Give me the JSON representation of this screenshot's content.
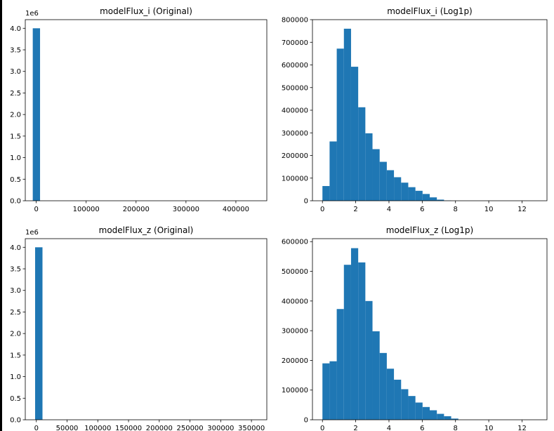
{
  "colors": {
    "bar": "#1f77b4",
    "axis": "#000000",
    "background": "#ffffff"
  },
  "chart_data": [
    {
      "type": "bar",
      "title": "modelFlux_i (Original)",
      "xlabel": "",
      "ylabel": "",
      "offset_label": "1e6",
      "xlim": [
        -22000,
        462000
      ],
      "ylim": [
        0,
        4.2
      ],
      "xticks": [
        0,
        100000,
        200000,
        300000,
        400000
      ],
      "xtick_labels": [
        "0",
        "100000",
        "200000",
        "300000",
        "400000"
      ],
      "yticks": [
        0,
        0.5,
        1.0,
        1.5,
        2.0,
        2.5,
        3.0,
        3.5,
        4.0
      ],
      "ytick_labels": [
        "0.0",
        "0.5",
        "1.0",
        "1.5",
        "2.0",
        "2.5",
        "3.0",
        "3.5",
        "4.0"
      ],
      "bin_width": 14600,
      "bins": [
        {
          "x0": -7000,
          "value": 4.0
        }
      ]
    },
    {
      "type": "bar",
      "title": "modelFlux_i (Log1p)",
      "xlabel": "",
      "ylabel": "",
      "xlim": [
        -0.6,
        13.5
      ],
      "ylim": [
        0,
        800000
      ],
      "xticks": [
        0,
        2,
        4,
        6,
        8,
        10,
        12
      ],
      "xtick_labels": [
        "0",
        "2",
        "4",
        "6",
        "8",
        "10",
        "12"
      ],
      "yticks": [
        0,
        100000,
        200000,
        300000,
        400000,
        500000,
        600000,
        700000,
        800000
      ],
      "ytick_labels": [
        "0",
        "100000",
        "200000",
        "300000",
        "400000",
        "500000",
        "600000",
        "700000",
        "800000"
      ],
      "bin_width": 0.43,
      "values": [
        65000,
        262000,
        672000,
        760000,
        592000,
        413000,
        298000,
        228000,
        172000,
        135000,
        104000,
        80000,
        60000,
        44000,
        30000,
        15000,
        5000,
        1000,
        0,
        0,
        0,
        0,
        0,
        0,
        0,
        0,
        0,
        0,
        0,
        0
      ]
    },
    {
      "type": "bar",
      "title": "modelFlux_z (Original)",
      "xlabel": "",
      "ylabel": "",
      "offset_label": "1e6",
      "xlim": [
        -18000,
        375000
      ],
      "ylim": [
        0,
        4.2
      ],
      "xticks": [
        0,
        50000,
        100000,
        150000,
        200000,
        250000,
        300000,
        350000
      ],
      "xtick_labels": [
        "0",
        "50000",
        "100000",
        "150000",
        "200000",
        "250000",
        "300000",
        "350000"
      ],
      "yticks": [
        0,
        0.5,
        1.0,
        1.5,
        2.0,
        2.5,
        3.0,
        3.5,
        4.0
      ],
      "ytick_labels": [
        "0.0",
        "0.5",
        "1.0",
        "1.5",
        "2.0",
        "2.5",
        "3.0",
        "3.5",
        "4.0"
      ],
      "bin_width": 12000,
      "bins": [
        {
          "x0": -2000,
          "value": 4.0
        }
      ]
    },
    {
      "type": "bar",
      "title": "modelFlux_z (Log1p)",
      "xlabel": "",
      "ylabel": "",
      "xlim": [
        -0.6,
        13.5
      ],
      "ylim": [
        0,
        610000
      ],
      "xticks": [
        0,
        2,
        4,
        6,
        8,
        10,
        12
      ],
      "xtick_labels": [
        "0",
        "2",
        "4",
        "6",
        "8",
        "10",
        "12"
      ],
      "yticks": [
        0,
        100000,
        200000,
        300000,
        400000,
        500000,
        600000
      ],
      "ytick_labels": [
        "0",
        "100000",
        "200000",
        "300000",
        "400000",
        "500000",
        "600000"
      ],
      "bin_width": 0.43,
      "values": [
        190000,
        197000,
        373000,
        522000,
        578000,
        530000,
        400000,
        298000,
        225000,
        172000,
        135000,
        103000,
        80000,
        58000,
        43000,
        32000,
        20000,
        12000,
        4000,
        0,
        0,
        0,
        0,
        0,
        0,
        0,
        0,
        0,
        0,
        0
      ]
    }
  ]
}
